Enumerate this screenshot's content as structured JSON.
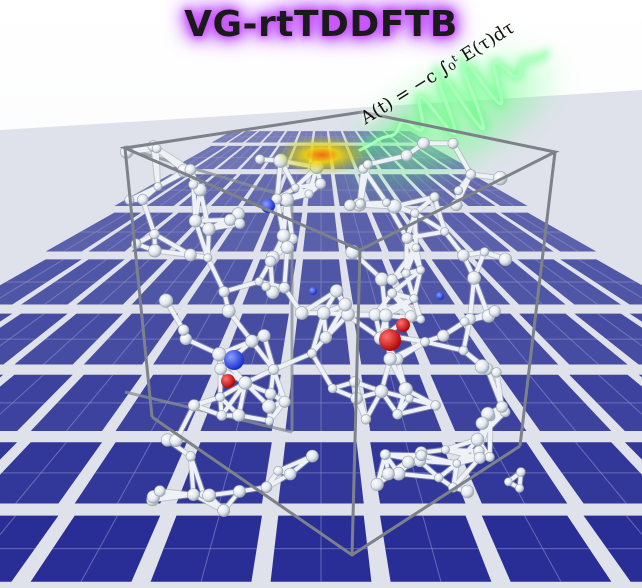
{
  "title": "VG-rtTDDFTB",
  "equation": "A(t) = −c ∫₀ᵗ E(τ)dτ",
  "colors": {
    "title_glow": "#c040ff",
    "panel_cell": "#2a2f9a",
    "panel_grid": "#d9dde6",
    "wave_glow": "#39ff6a",
    "atom_blue": "#1f3cff",
    "atom_red": "#d01010",
    "bond": "#e9eef3",
    "box_edge": "#8a8f96"
  },
  "icons": [
    "solar-panel-grid",
    "silicon-cluster",
    "light-pulse-wave",
    "simulation-box"
  ]
}
